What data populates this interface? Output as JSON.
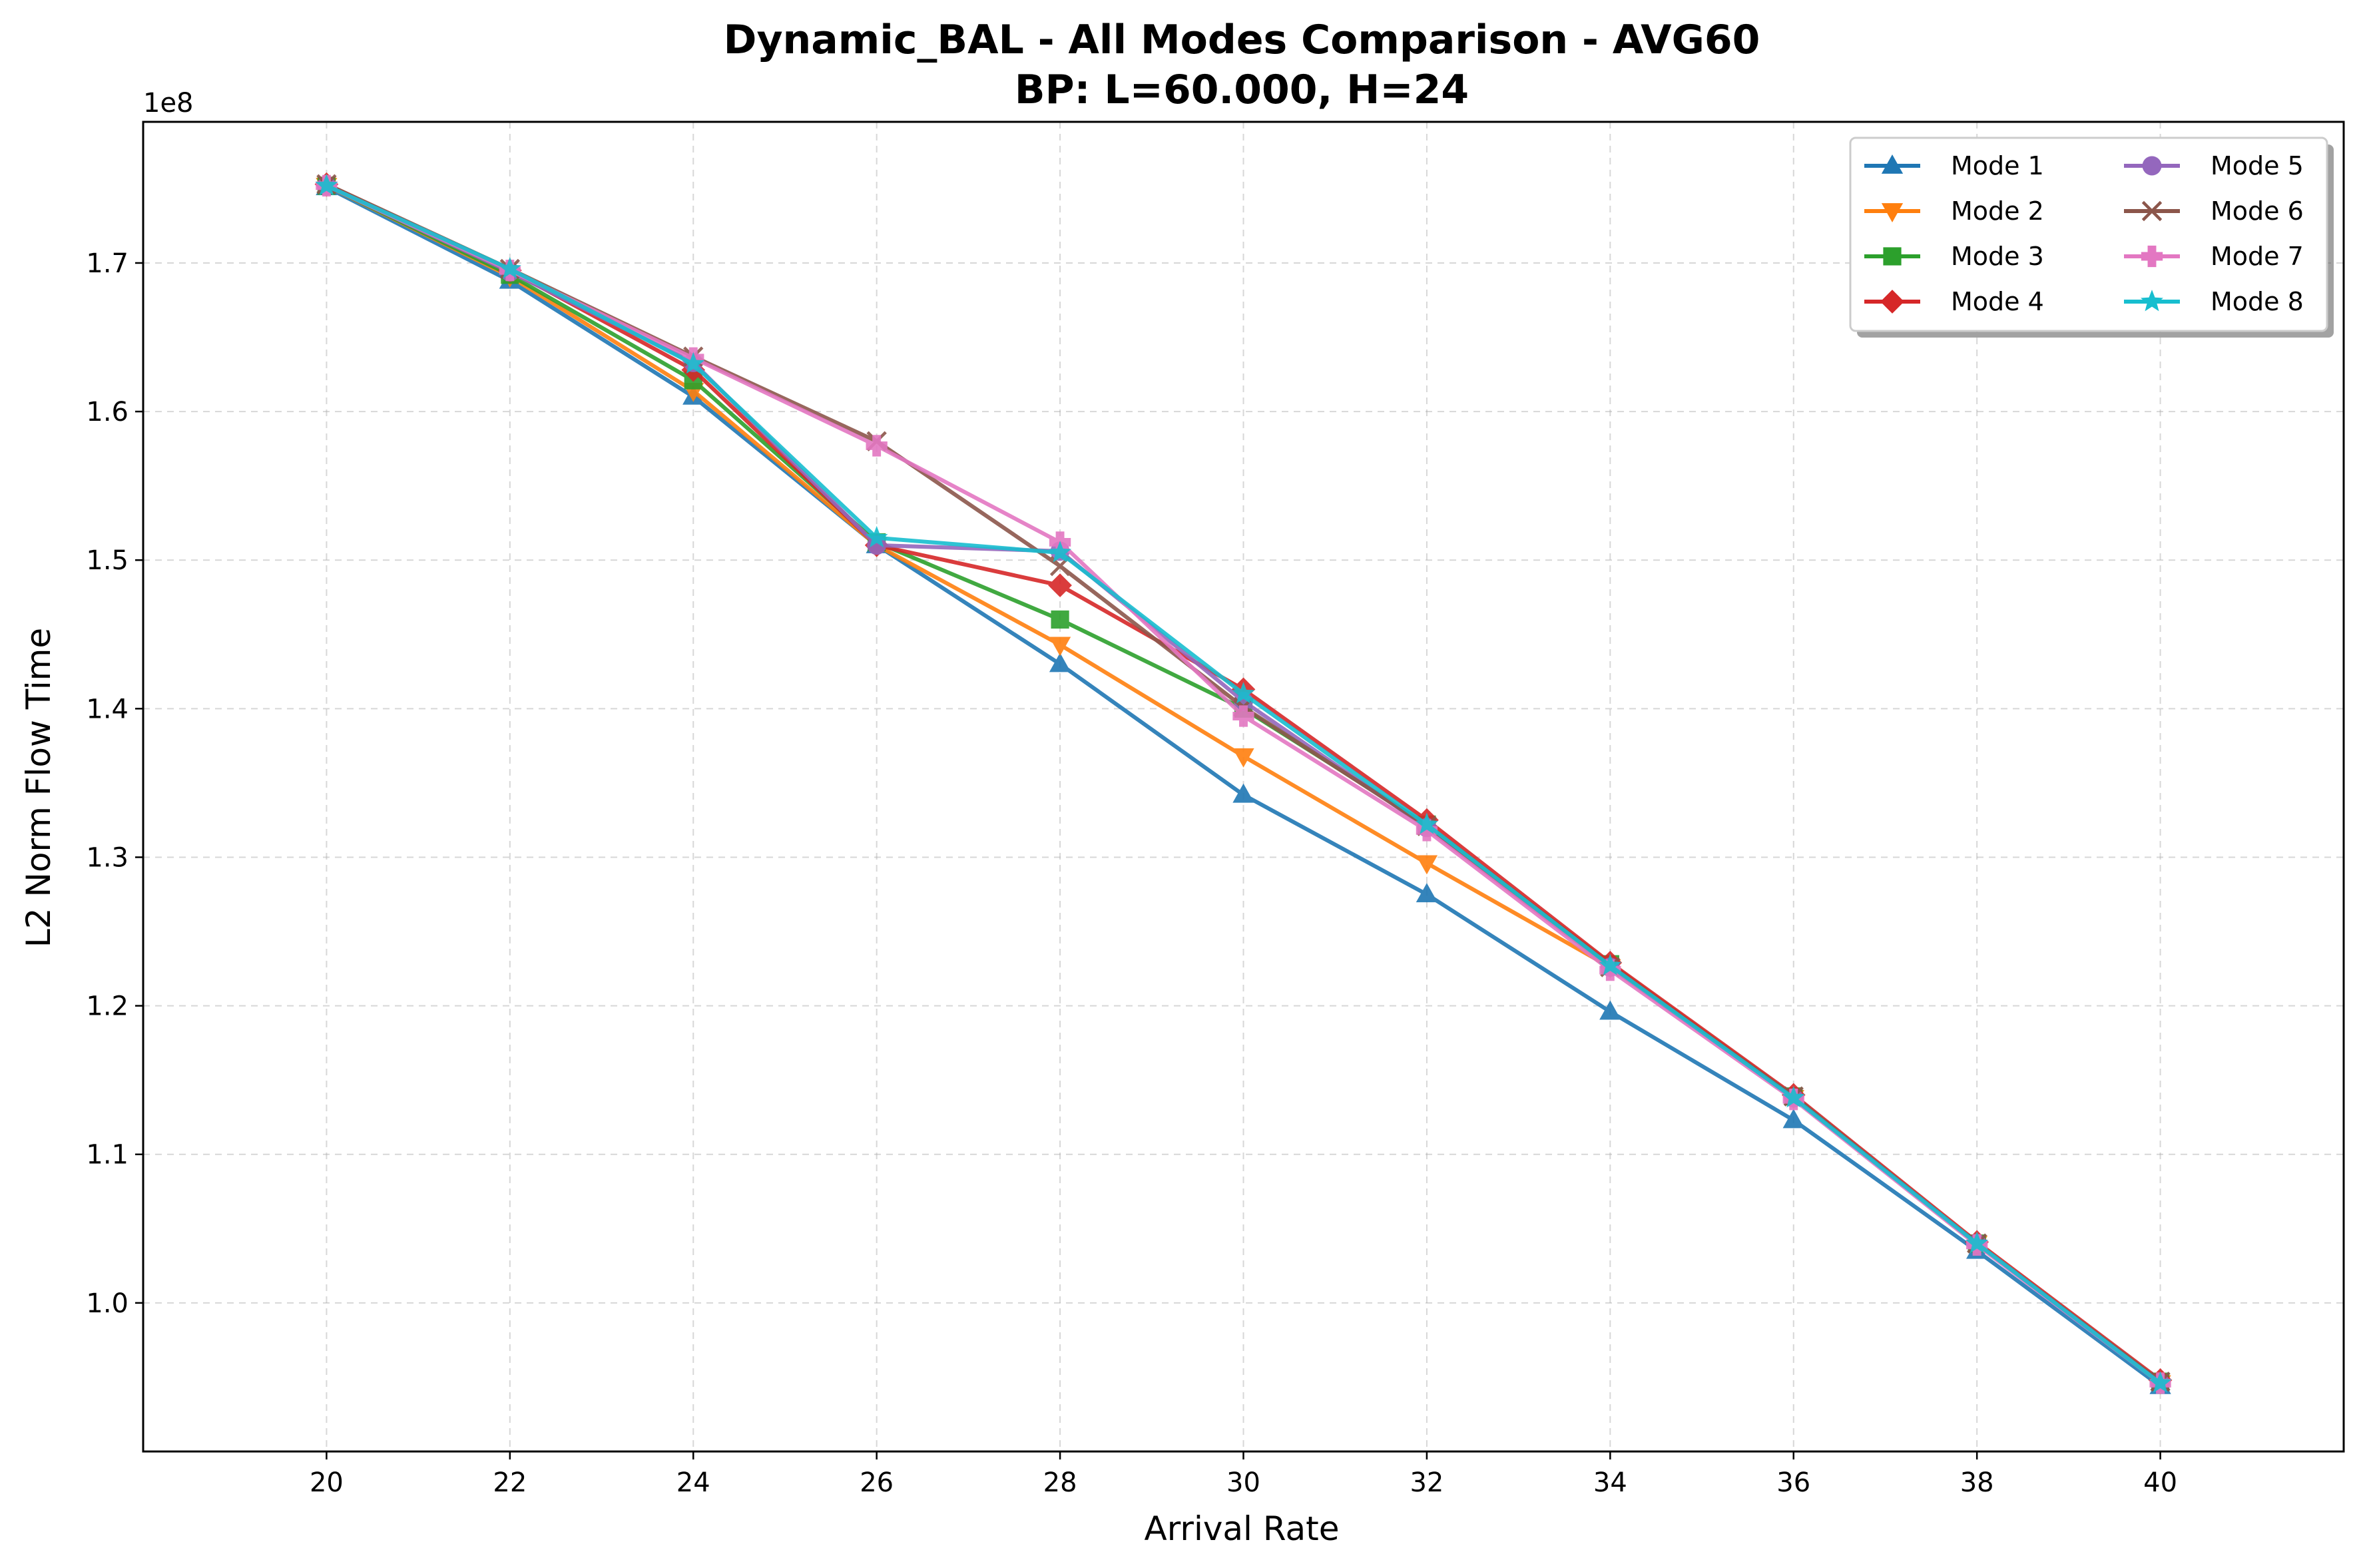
{
  "chart_data": {
    "type": "line",
    "title": "Dynamic_BAL - All Modes Comparison - AVG60",
    "subtitle": "BP: L=60.000, H=24",
    "xlabel": "Arrival Rate",
    "ylabel": "L2 Norm Flow Time",
    "y_scale_label": "1e8",
    "x": [
      20,
      22,
      24,
      26,
      28,
      30,
      32,
      34,
      36,
      38,
      40
    ],
    "x_tick_labels": [
      "20",
      "22",
      "24",
      "26",
      "28",
      "30",
      "32",
      "34",
      "36",
      "38",
      "40"
    ],
    "y_ticks": [
      1.0,
      1.1,
      1.2,
      1.3,
      1.4,
      1.5,
      1.6,
      1.7
    ],
    "y_tick_labels": [
      "1.0",
      "1.1",
      "1.2",
      "1.3",
      "1.4",
      "1.5",
      "1.6",
      "1.7"
    ],
    "xlim": [
      18,
      42
    ],
    "ylim": [
      0.9,
      1.795
    ],
    "grid": true,
    "legend_position": "top-right",
    "series": [
      {
        "name": "Mode 1",
        "color": "#1f77b4",
        "marker": "triangle-up",
        "values": [
          1.751,
          1.688,
          1.61,
          1.51,
          1.43,
          1.342,
          1.275,
          1.196,
          1.123,
          1.035,
          0.944
        ]
      },
      {
        "name": "Mode 2",
        "color": "#ff7f0e",
        "marker": "triangle-down",
        "values": [
          1.752,
          1.691,
          1.614,
          1.51,
          1.443,
          1.368,
          1.296,
          1.226,
          1.138,
          1.04,
          0.946
        ]
      },
      {
        "name": "Mode 3",
        "color": "#2ca02c",
        "marker": "square",
        "values": [
          1.752,
          1.692,
          1.621,
          1.512,
          1.46,
          1.4,
          1.322,
          1.228,
          1.139,
          1.04,
          0.947
        ]
      },
      {
        "name": "Mode 4",
        "color": "#d62728",
        "marker": "diamond",
        "values": [
          1.753,
          1.695,
          1.628,
          1.51,
          1.483,
          1.413,
          1.325,
          1.229,
          1.14,
          1.041,
          0.948
        ]
      },
      {
        "name": "Mode 5",
        "color": "#9467bd",
        "marker": "circle",
        "values": [
          1.752,
          1.694,
          1.633,
          1.51,
          1.506,
          1.405,
          1.32,
          1.226,
          1.138,
          1.04,
          0.946
        ]
      },
      {
        "name": "Mode 6",
        "color": "#8c564b",
        "marker": "x",
        "values": [
          1.753,
          1.696,
          1.637,
          1.58,
          1.496,
          1.401,
          1.321,
          1.226,
          1.139,
          1.04,
          0.947
        ]
      },
      {
        "name": "Mode 7",
        "color": "#e377c2",
        "marker": "plus-filled",
        "values": [
          1.752,
          1.695,
          1.636,
          1.577,
          1.512,
          1.395,
          1.318,
          1.224,
          1.137,
          1.039,
          0.946
        ]
      },
      {
        "name": "Mode 8",
        "color": "#17becf",
        "marker": "star",
        "values": [
          1.752,
          1.696,
          1.632,
          1.515,
          1.505,
          1.41,
          1.322,
          1.227,
          1.138,
          1.04,
          0.946
        ]
      }
    ]
  }
}
